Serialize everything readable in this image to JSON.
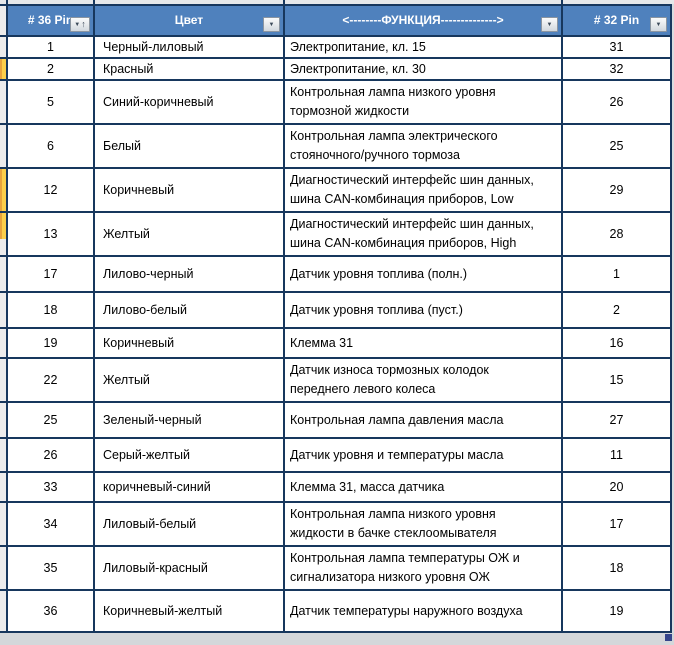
{
  "table": {
    "columns": [
      {
        "label": "# 36 Pin",
        "filter": "sort-ascending-dropdown"
      },
      {
        "label": "Цвет",
        "filter": "dropdown"
      },
      {
        "label": "<--------ФУНКЦИЯ-------------->",
        "filter": "dropdown"
      },
      {
        "label": "# 32 Pin",
        "filter": "dropdown"
      }
    ],
    "rows": [
      {
        "pin36": "1",
        "color": "Черный-лиловый",
        "function": "Электропитание, кл. 15",
        "pin32": "31",
        "left_mark": "none"
      },
      {
        "pin36": "2",
        "color": "Красный",
        "function": "Электропитание, кл. 30",
        "pin32": "32",
        "left_mark": "full"
      },
      {
        "pin36": "5",
        "color": "Синий-коричневый",
        "function": "Контрольная лампа низкого уровня\nтормозной жидкости",
        "pin32": "26",
        "left_mark": "none"
      },
      {
        "pin36": "6",
        "color": "Белый",
        "function": "Контрольная лампа электрического\nстояночного/ручного тормоза",
        "pin32": "25",
        "left_mark": "none"
      },
      {
        "pin36": "12",
        "color": "Коричневый",
        "function": "Диагностический интерфейс шин данных,\nшина CAN-комбинация приборов, Low",
        "pin32": "29",
        "left_mark": "full"
      },
      {
        "pin36": "13",
        "color": "Желтый",
        "function": "Диагностический интерфейс шин данных,\nшина CAN-комбинация приборов, High",
        "pin32": "28",
        "left_mark": "partial"
      },
      {
        "pin36": "17",
        "color": "Лилово-черный",
        "function": "Датчик уровня топлива (полн.)",
        "pin32": "1",
        "left_mark": "none"
      },
      {
        "pin36": "18",
        "color": "Лилово-белый",
        "function": "Датчик уровня топлива (пуст.)",
        "pin32": "2",
        "left_mark": "none"
      },
      {
        "pin36": "19",
        "color": "Коричневый",
        "function": "Клемма 31",
        "pin32": "16",
        "left_mark": "none"
      },
      {
        "pin36": "22",
        "color": "Желтый",
        "function": "Датчик износа тормозных колодок\nпереднего левого колеса",
        "pin32": "15",
        "left_mark": "none"
      },
      {
        "pin36": "25",
        "color": "Зеленый-черный",
        "function": "Контрольная лампа давления масла",
        "pin32": "27",
        "left_mark": "none"
      },
      {
        "pin36": "26",
        "color": "Серый-желтый",
        "function": "Датчик уровня и температуры масла",
        "pin32": "11",
        "left_mark": "none"
      },
      {
        "pin36": "33",
        "color": "коричневый-синий",
        "function": "Клемма 31, масса датчика",
        "pin32": "20",
        "left_mark": "none"
      },
      {
        "pin36": "34",
        "color": "Лиловый-белый",
        "function": "Контрольная лампа низкого уровня\nжидкости в бачке стеклоомывателя",
        "pin32": "17",
        "left_mark": "none"
      },
      {
        "pin36": "35",
        "color": "Лиловый-красный",
        "function": "Контрольная лампа температуры ОЖ и\nсигнализатора низкого уровня ОЖ",
        "pin32": "18",
        "left_mark": "none"
      },
      {
        "pin36": "36",
        "color": "Коричневый-желтый",
        "function": "Датчик температуры наружного воздуха",
        "pin32": "19",
        "left_mark": "none"
      }
    ]
  },
  "icons": {
    "dropdown": "▼",
    "sort_ascending": "↑"
  },
  "colors": {
    "header_bg": "#4f81bd",
    "header_text": "#ffffff",
    "border": "#17375d",
    "cell_bg": "#ffffff",
    "highlight_mark": "#fccf4b",
    "highlight_mark_edge": "#e8a33c",
    "corner_handle": "#35458b"
  }
}
